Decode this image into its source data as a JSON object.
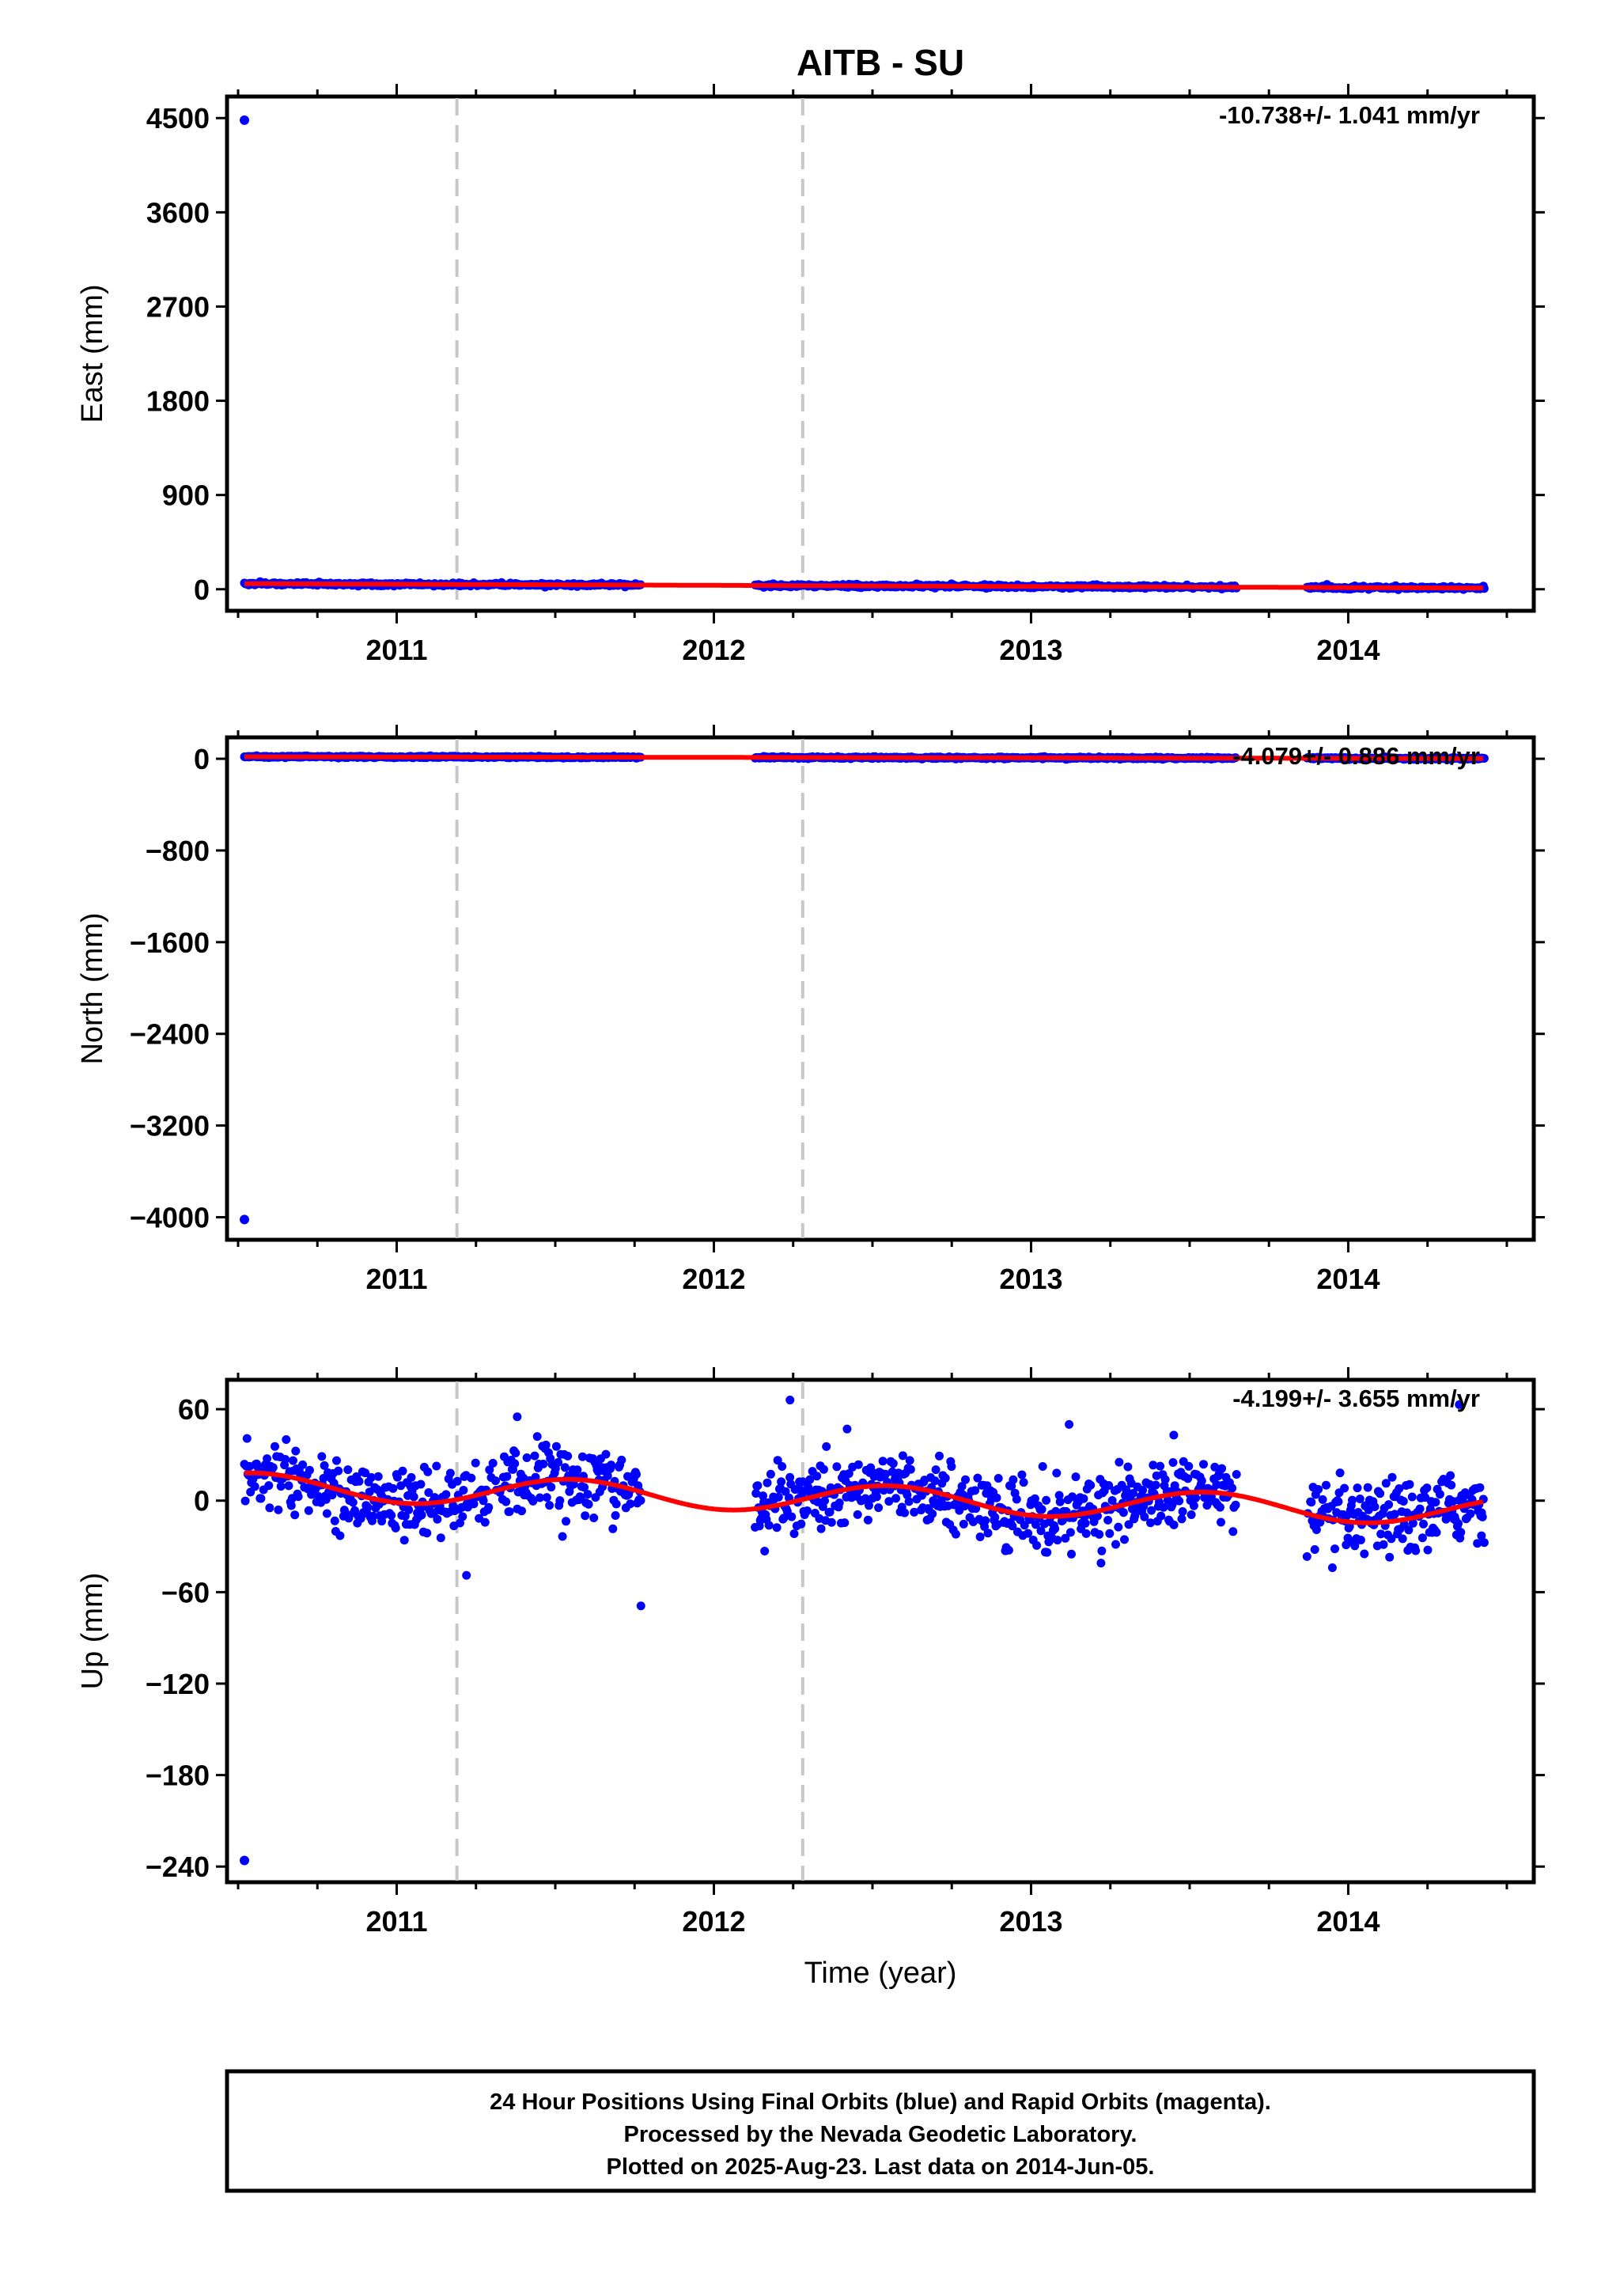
{
  "title": "AITB - SU",
  "xlabel": "Time (year)",
  "colors": {
    "final_points": "#0000ff",
    "model_line": "#ff0000",
    "event_lines": "#c8c8c8",
    "axes": "#000000"
  },
  "footer": {
    "line1": "24 Hour Positions Using Final Orbits (blue) and Rapid Orbits (magenta).",
    "line2": "Processed by the Nevada Geodetic Laboratory.",
    "line3": "Plotted on 2025-Aug-23. Last data on 2014-Jun-05."
  },
  "chart_data": [
    {
      "type": "scatter",
      "component": "east",
      "ylabel": "East (mm)",
      "rate_label": "-10.738+/- 1.041 mm/yr",
      "xlim": [
        2010.5,
        2014.55
      ],
      "ylim": [
        -100,
        4600
      ],
      "yticks": [
        "4500",
        "3600",
        "2700",
        "1800",
        "900",
        "0"
      ],
      "xticks": [
        "2011",
        "2012",
        "2013",
        "2014"
      ],
      "grid": false,
      "event_lines_x": [
        2011.19,
        2012.28
      ],
      "segments": [
        [
          2010.52,
          2011.77
        ],
        [
          2012.13,
          2013.65
        ],
        [
          2013.87,
          2014.43
        ]
      ],
      "outlier": {
        "x": 2010.52,
        "y": 4480
      },
      "trend": {
        "intercept": 32,
        "rate": -10.738,
        "annual_amp": 0,
        "annual_phase": 0
      },
      "noise": 7
    },
    {
      "type": "scatter",
      "component": "north",
      "ylabel": "North (mm)",
      "rate_label": "-4.079+/- 0.886 mm/yr",
      "xlim": [
        2010.5,
        2014.55
      ],
      "ylim": [
        -4100,
        90
      ],
      "yticks": [
        "0",
        "−800",
        "−1600",
        "−2400",
        "−3200",
        "−4000"
      ],
      "xticks": [
        "2011",
        "2012",
        "2013",
        "2014"
      ],
      "grid": false,
      "event_lines_x": [
        2011.19,
        2012.28
      ],
      "segments": [
        [
          2010.52,
          2011.77
        ],
        [
          2012.13,
          2013.65
        ],
        [
          2013.87,
          2014.43
        ]
      ],
      "outlier": {
        "x": 2010.52,
        "y": -4020
      },
      "trend": {
        "intercept": 10,
        "rate": -4.079,
        "annual_amp": 0,
        "annual_phase": 0
      },
      "noise": 4
    },
    {
      "type": "scatter",
      "component": "up",
      "ylabel": "Up (mm)",
      "rate_label": "-4.199+/- 3.655 mm/yr",
      "xlim": [
        2010.5,
        2014.55
      ],
      "ylim": [
        -243,
        72
      ],
      "yticks": [
        "60",
        "0",
        "−60",
        "−120",
        "−180",
        "−240"
      ],
      "xticks": [
        "2011",
        "2012",
        "2013",
        "2014"
      ],
      "grid": false,
      "event_lines_x": [
        2011.19,
        2012.28
      ],
      "segments": [
        [
          2010.52,
          2011.77
        ],
        [
          2012.13,
          2013.65
        ],
        [
          2013.87,
          2014.43
        ]
      ],
      "outlier": {
        "x": 2010.52,
        "y": -236
      },
      "trend": {
        "intercept": 1,
        "rate": -4.199,
        "annual_amp": 9,
        "annual_phase": 0.3
      },
      "noise": 11,
      "extra_points": [
        [
          2011.22,
          -49
        ],
        [
          2011.38,
          55
        ],
        [
          2011.77,
          -69
        ],
        [
          2012.24,
          66
        ],
        [
          2012.42,
          47
        ],
        [
          2013.12,
          50
        ],
        [
          2013.45,
          43
        ],
        [
          2014.35,
          63
        ],
        [
          2014.42,
          -23
        ],
        [
          2013.95,
          -44
        ]
      ]
    }
  ]
}
